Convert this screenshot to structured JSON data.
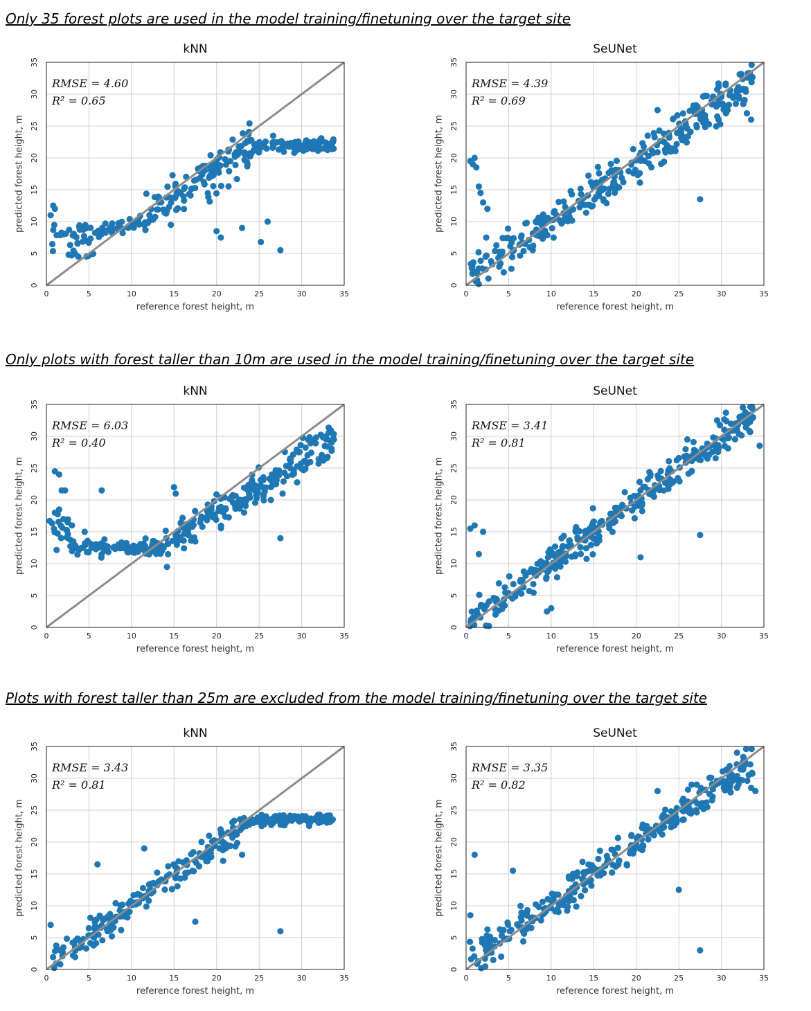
{
  "sections": [
    {
      "heading": "Only 35 forest plots are used in the model training/finetuning over the target site"
    },
    {
      "heading": "Only plots with forest taller than 10m are used in the model training/finetuning over the target site"
    },
    {
      "heading": "Plots with forest taller than 25m are excluded from the model training/finetuning over the target site"
    }
  ],
  "colors": {
    "points": "#1f77b4",
    "identity_line": "#8c8c8c",
    "grid": "#d0d0d0"
  },
  "chart_data": [
    {
      "id": "s1-knn",
      "type": "scatter",
      "title": "kNN",
      "xlabel": "reference forest height, m",
      "ylabel": "predicted forest height, m",
      "xlim": [
        0,
        35
      ],
      "ylim": [
        0,
        35
      ],
      "ticks": [
        "0",
        "5",
        "10",
        "15",
        "20",
        "25",
        "30",
        "35"
      ],
      "rmse_label": "RMSE = 4.60",
      "r2_label": "R² = 0.65",
      "rmse": 4.6,
      "r2": 0.65,
      "series": [
        {
          "name": "kNN points",
          "pattern": {
            "type": "plateau",
            "seed": 11,
            "n": 300,
            "low_x": 5.5,
            "low_y_min": 4.5,
            "low_y_max": 9.5,
            "flat": 22,
            "noise": 2.4
          },
          "points": [
            [
              27.5,
              5.5
            ],
            [
              25.2,
              6.8
            ],
            [
              23.0,
              9.0
            ],
            [
              26.0,
              10.0
            ],
            [
              20.5,
              7.5
            ],
            [
              20.0,
              8.5
            ],
            [
              0.5,
              11.0
            ],
            [
              1.0,
              12.0
            ],
            [
              0.8,
              12.5
            ],
            [
              33.5,
              22.0
            ],
            [
              32.0,
              22.0
            ],
            [
              31.5,
              22.0
            ]
          ]
        }
      ]
    },
    {
      "id": "s1-seunet",
      "type": "scatter",
      "title": "SeUNet",
      "xlabel": "reference forest height, m",
      "ylabel": "predicted forest height, m",
      "xlim": [
        0,
        35
      ],
      "ylim": [
        0,
        35
      ],
      "ticks": [
        "0",
        "5",
        "10",
        "15",
        "20",
        "25",
        "30",
        "35"
      ],
      "rmse_label": "RMSE = 4.39",
      "r2_label": "R² = 0.69",
      "rmse": 4.39,
      "r2": 0.69,
      "series": [
        {
          "name": "SeUNet points",
          "pattern": {
            "type": "linear",
            "seed": 12,
            "n": 320,
            "slope": 0.92,
            "intercept": 1.0,
            "noise": 3.0
          },
          "points": [
            [
              0.5,
              19.5
            ],
            [
              0.8,
              19.0
            ],
            [
              1.0,
              20.0
            ],
            [
              1.2,
              18.5
            ],
            [
              1.5,
              15.5
            ],
            [
              1.7,
              14.5
            ],
            [
              2.0,
              13.0
            ],
            [
              2.5,
              12.0
            ],
            [
              27.5,
              13.5
            ],
            [
              33.0,
              27.0
            ],
            [
              33.5,
              26.0
            ],
            [
              31.0,
              30.0
            ],
            [
              30.0,
              30.0
            ],
            [
              22.5,
              27.5
            ]
          ]
        }
      ]
    },
    {
      "id": "s2-knn",
      "type": "scatter",
      "title": "kNN",
      "xlabel": "reference forest height, m",
      "ylabel": "predicted forest height, m",
      "xlim": [
        0,
        35
      ],
      "ylim": [
        0,
        35
      ],
      "ticks": [
        "0",
        "5",
        "10",
        "15",
        "20",
        "25",
        "30",
        "35"
      ],
      "rmse_label": "RMSE = 6.03",
      "r2_label": "R² = 0.40",
      "rmse": 6.03,
      "r2": 0.4,
      "series": [
        {
          "name": "kNN points",
          "pattern": {
            "type": "floor",
            "seed": 21,
            "n": 320,
            "floor": 12.5,
            "noise": 2.0
          },
          "points": [
            [
              1.0,
              24.5
            ],
            [
              1.5,
              24.0
            ],
            [
              1.8,
              21.5
            ],
            [
              2.2,
              21.5
            ],
            [
              1.0,
              18.0
            ],
            [
              1.5,
              18.5
            ],
            [
              2.0,
              17.0
            ],
            [
              2.5,
              16.5
            ],
            [
              3.0,
              16.0
            ],
            [
              4.5,
              15.0
            ],
            [
              6.5,
              21.5
            ],
            [
              27.5,
              14.0
            ],
            [
              33.0,
              29.5
            ],
            [
              33.5,
              29.0
            ],
            [
              15.0,
              22.0
            ],
            [
              15.2,
              21.0
            ]
          ]
        }
      ]
    },
    {
      "id": "s2-seunet",
      "type": "scatter",
      "title": "SeUNet",
      "xlabel": "reference forest height, m",
      "ylabel": "predicted forest height, m",
      "xlim": [
        0,
        35
      ],
      "ylim": [
        0,
        35
      ],
      "ticks": [
        "0",
        "5",
        "10",
        "15",
        "20",
        "25",
        "30",
        "35"
      ],
      "rmse_label": "RMSE = 3.41",
      "r2_label": "R² = 0.81",
      "rmse": 3.41,
      "r2": 0.81,
      "series": [
        {
          "name": "SeUNet points",
          "pattern": {
            "type": "linear",
            "seed": 22,
            "n": 320,
            "slope": 0.98,
            "intercept": 0.4,
            "noise": 2.6
          },
          "points": [
            [
              0.5,
              15.5
            ],
            [
              1.0,
              16.0
            ],
            [
              2.0,
              15.0
            ],
            [
              1.5,
              11.5
            ],
            [
              27.5,
              14.5
            ],
            [
              34.5,
              28.5
            ],
            [
              33.0,
              32.0
            ],
            [
              29.5,
              32.5
            ],
            [
              26.0,
              29.5
            ],
            [
              20.5,
              11.0
            ],
            [
              10.0,
              3.0
            ],
            [
              9.5,
              2.5
            ]
          ]
        }
      ]
    },
    {
      "id": "s3-knn",
      "type": "scatter",
      "title": "kNN",
      "xlabel": "reference forest height, m",
      "ylabel": "predicted forest height, m",
      "xlim": [
        0,
        35
      ],
      "ylim": [
        0,
        35
      ],
      "ticks": [
        "0",
        "5",
        "10",
        "15",
        "20",
        "25",
        "30",
        "35"
      ],
      "rmse_label": "RMSE = 3.43",
      "r2_label": "R² = 0.81",
      "rmse": 3.43,
      "r2": 0.81,
      "series": [
        {
          "name": "kNN points",
          "pattern": {
            "type": "capped",
            "seed": 31,
            "n": 330,
            "slope": 0.95,
            "intercept": 0.6,
            "cap": 23.5,
            "noise": 2.3
          },
          "points": [
            [
              27.5,
              6.0
            ],
            [
              17.5,
              7.5
            ],
            [
              6.0,
              16.5
            ],
            [
              11.5,
              19.0
            ],
            [
              0.5,
              7.0
            ],
            [
              33.5,
              23.5
            ],
            [
              33.0,
              23.5
            ],
            [
              32.0,
              23.0
            ],
            [
              23.0,
              18.0
            ]
          ]
        }
      ]
    },
    {
      "id": "s3-seunet",
      "type": "scatter",
      "title": "SeUNet",
      "xlabel": "reference forest height, m",
      "ylabel": "predicted forest height, m",
      "xlim": [
        0,
        35
      ],
      "ylim": [
        0,
        35
      ],
      "ticks": [
        "0",
        "5",
        "10",
        "15",
        "20",
        "25",
        "30",
        "35"
      ],
      "rmse_label": "RMSE = 3.35",
      "r2_label": "R² = 0.82",
      "rmse": 3.35,
      "r2": 0.82,
      "series": [
        {
          "name": "SeUNet points",
          "pattern": {
            "type": "linear",
            "seed": 32,
            "n": 330,
            "slope": 0.95,
            "intercept": 0.7,
            "noise": 2.4
          },
          "points": [
            [
              1.0,
              18.0
            ],
            [
              0.5,
              8.5
            ],
            [
              5.5,
              15.5
            ],
            [
              27.5,
              3.0
            ],
            [
              25.0,
              12.5
            ],
            [
              34.0,
              28.0
            ],
            [
              33.5,
              28.5
            ],
            [
              32.0,
              29.0
            ],
            [
              30.5,
              28.5
            ],
            [
              26.5,
              29.0
            ],
            [
              22.5,
              28.0
            ]
          ]
        }
      ]
    }
  ]
}
